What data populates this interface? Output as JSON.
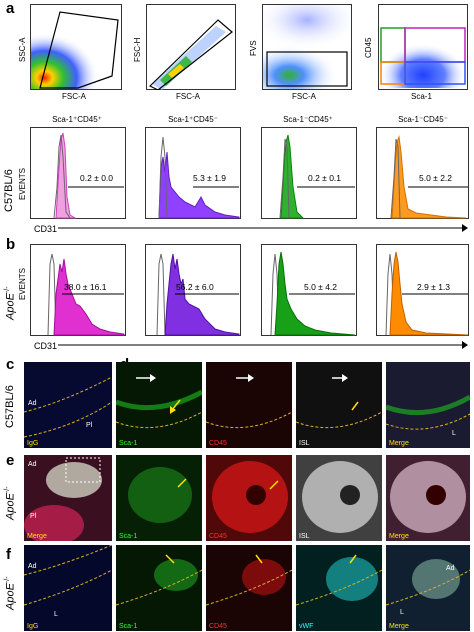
{
  "panels": {
    "a": "a",
    "b": "b",
    "c": "c",
    "d": "d",
    "e": "e",
    "f": "f"
  },
  "gating": {
    "p1": {
      "y_label": "SSC-A",
      "x_label": "FSC-A"
    },
    "p2": {
      "y_label": "FSC-H",
      "x_label": "FSC-A"
    },
    "p3": {
      "y_label": "FVS",
      "x_label": "FSC-A"
    },
    "p4": {
      "y_label": "CD45",
      "x_label": "Sca-1"
    }
  },
  "histograms": {
    "column_headers": [
      "Sca-1⁺CD45⁺",
      "Sca-1⁺CD45⁻",
      "Sca-1⁻CD45⁺",
      "Sca-1⁻CD45⁻"
    ],
    "y_label": "EVENTS",
    "x_label": "CD31",
    "row1_label": "C57BL/6",
    "row2_label": "ApoE",
    "row2_label_sup": "-/-",
    "row1_stats": [
      "0.2 ± 0.0",
      "5.3 ± 1.9",
      "0.2 ± 0.1",
      "5.0 ± 2.2"
    ],
    "row2_stats": [
      "38.0 ± 16.1",
      "56.2 ± 6.0",
      "5.0 ± 4.2",
      "2.9 ± 1.3"
    ],
    "colors": [
      "#e040c8",
      "#8a2be2",
      "#1f9e1f",
      "#ff8c00"
    ]
  },
  "micro": {
    "row_c_label": "C57BL/6",
    "row_e_label": "ApoE",
    "row_f_label": "ApoE",
    "row_sup": "-/-",
    "c": {
      "tags": {
        "igg": "IgG",
        "sca1": "Sca-1",
        "cd45": "CD45",
        "isl": "ISL",
        "merge": "Merge"
      },
      "texts": {
        "ad": "Ad",
        "pl": "Pl",
        "l": "L"
      }
    },
    "e": {
      "tags": {
        "merge": "Merge",
        "sca1": "Sca-1",
        "cd45": "CD45",
        "isl": "ISL",
        "merge2": "Merge"
      },
      "texts": {
        "ad": "Ad",
        "pl": "Pl"
      }
    },
    "f": {
      "tags": {
        "igg": "IgG",
        "sca1": "Sca-1",
        "cd45": "CD45",
        "vwf": "vWF",
        "merge": "Merge"
      },
      "texts": {
        "ad1": "Ad",
        "l1": "L",
        "ad2": "Ad",
        "l2": "L"
      }
    }
  }
}
